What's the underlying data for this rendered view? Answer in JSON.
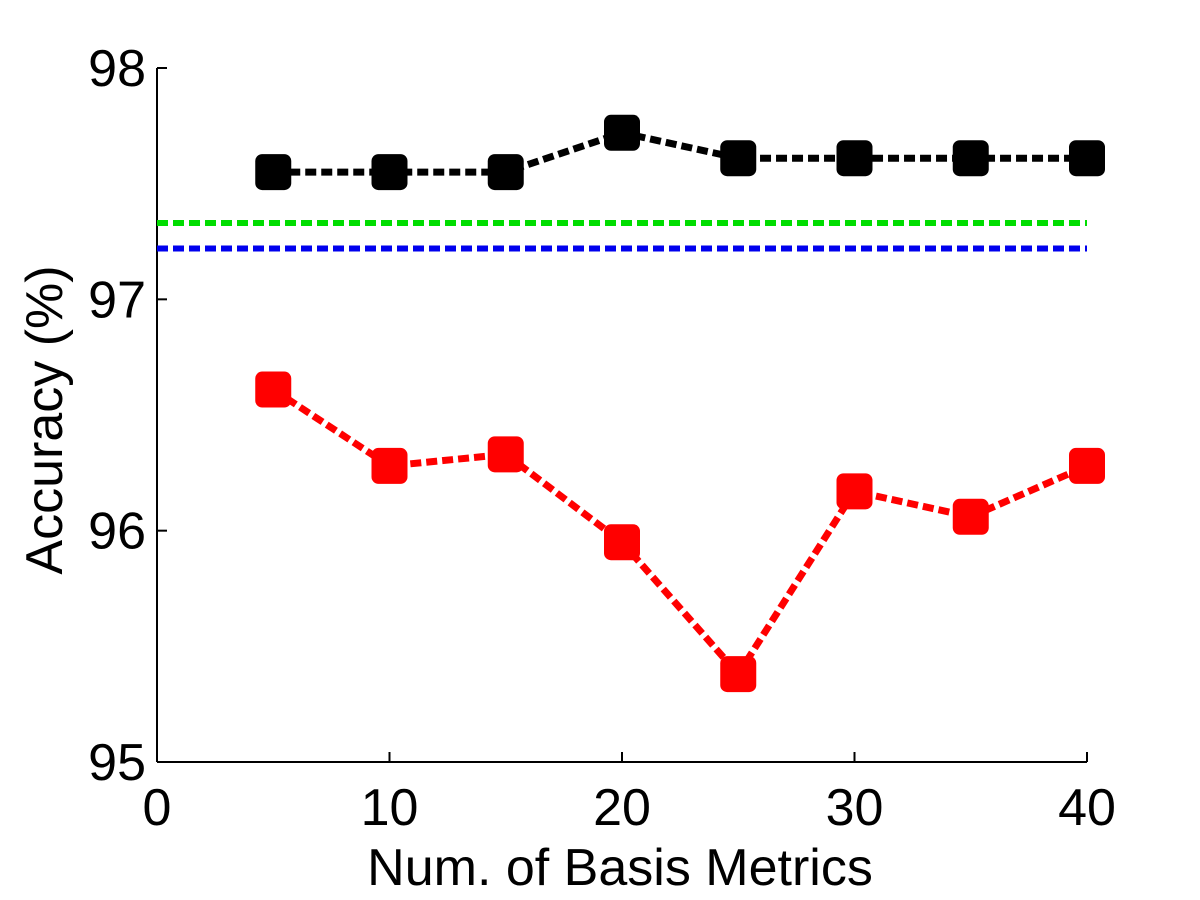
{
  "chart_data": {
    "type": "line",
    "title": "",
    "xlabel": "Num. of Basis Metrics",
    "ylabel": "Accuracy (%)",
    "xlim": [
      0,
      40
    ],
    "ylim": [
      95,
      98
    ],
    "xticks": [
      0,
      10,
      20,
      30,
      40
    ],
    "yticks": [
      95,
      96,
      97,
      98
    ],
    "grid": false,
    "x": [
      5,
      10,
      15,
      20,
      25,
      30,
      35,
      40
    ],
    "series": [
      {
        "color": "#000000",
        "marker": "square",
        "values": [
          97.55,
          97.55,
          97.55,
          97.72,
          97.61,
          97.61,
          97.61,
          97.61
        ]
      },
      {
        "color": "#ff0000",
        "marker": "square",
        "values": [
          96.61,
          96.28,
          96.33,
          95.95,
          95.38,
          96.17,
          96.06,
          96.28
        ]
      }
    ],
    "reference_lines": [
      {
        "color": "#00dd00",
        "value": 97.33
      },
      {
        "color": "#0000ee",
        "value": 97.22
      }
    ]
  }
}
